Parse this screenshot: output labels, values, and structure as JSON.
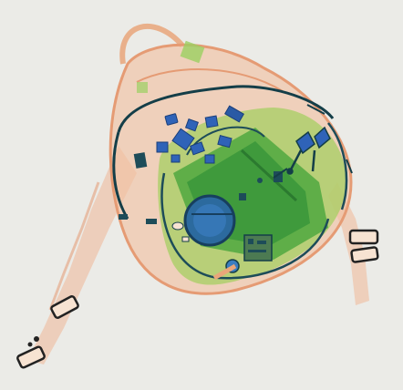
{
  "image": {
    "kind": "x-ray baggage scan",
    "subject": "backpack",
    "palette": {
      "background": "#ebebe7",
      "organic": "#e9a67a",
      "mixed": "#7fc34f",
      "dense_green": "#3f9a3c",
      "inorganic": "#2f63b8",
      "dark": "#1d4c59"
    }
  }
}
